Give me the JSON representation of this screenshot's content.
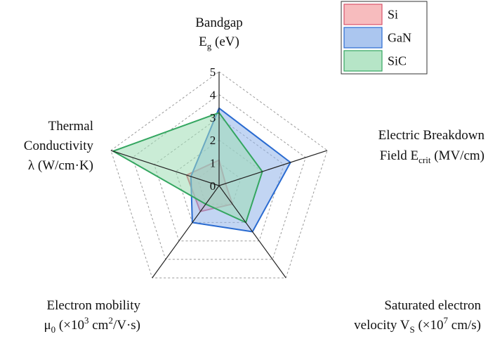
{
  "chart_data": {
    "type": "radar",
    "title": "",
    "axes": [
      {
        "name": "Bandgap Eg (eV)",
        "lines": [
          {
            "text": "Bandgap"
          },
          {
            "text": "E",
            "sub": "g",
            "rest": " (eV)"
          }
        ]
      },
      {
        "name": "Electric Breakdown Field Ecrit (MV/cm)",
        "lines": [
          {
            "text": "Electric Breakdown"
          },
          {
            "text": "Field E",
            "sub": "crit",
            "rest": " (MV/cm)"
          }
        ]
      },
      {
        "name": "Saturated electron velocity VS (×10^7 cm/s)",
        "lines": [
          {
            "text": "Saturated electron"
          },
          {
            "text": "velocity V",
            "sub": "S",
            "rest": " (×10",
            "sup": "7",
            "rest2": " cm/s)"
          }
        ]
      },
      {
        "name": "Electron mobility μ0 (×10^3 cm^2/V·s)",
        "lines": [
          {
            "text": "Electron mobility"
          },
          {
            "text": "μ",
            "sub": "0",
            "rest": " (×10",
            "sup": "3",
            "rest2": " cm",
            "sup2": "2",
            "rest3": "/V·s)"
          }
        ]
      },
      {
        "name": "Thermal Conductivity λ (W/cm·K)",
        "lines": [
          {
            "text": "Thermal"
          },
          {
            "text": "Conductivity"
          },
          {
            "text": "λ (W/cm·K)"
          }
        ]
      }
    ],
    "radial_ticks": [
      0,
      1,
      2,
      3,
      4,
      5
    ],
    "rlim": [
      0,
      5
    ],
    "grid": true,
    "legend": {
      "placement": "top-right"
    },
    "series": [
      {
        "name": "Si",
        "values": [
          1.12,
          0.3,
          1.0,
          1.4,
          1.5
        ],
        "fill": "#f4a6a8",
        "stroke": "#d9536a"
      },
      {
        "name": "GaN",
        "values": [
          3.4,
          3.3,
          2.5,
          2.0,
          1.3
        ],
        "fill": "#8fb3ea",
        "stroke": "#2a6bd1"
      },
      {
        "name": "SiC",
        "values": [
          3.2,
          2.0,
          2.0,
          1.0,
          4.9
        ],
        "fill": "#9edcb4",
        "stroke": "#34a660"
      }
    ]
  }
}
